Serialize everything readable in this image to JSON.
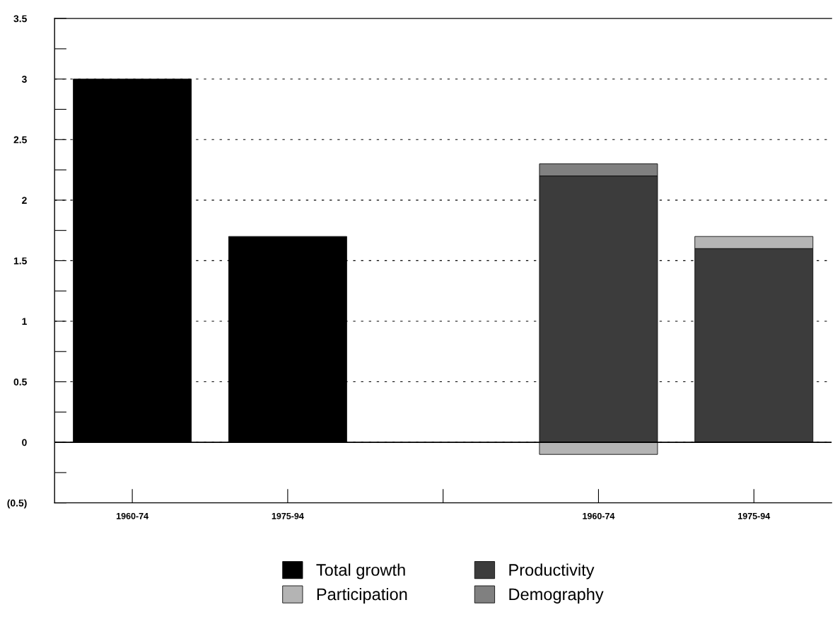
{
  "chart_data": {
    "type": "bar",
    "stacked": true,
    "categories": [
      "1960-74",
      "1975-94",
      null,
      "1960-74",
      "1975-94"
    ],
    "series": [
      {
        "name": "Total growth",
        "color": "#000000",
        "values": [
          3.0,
          1.7,
          null,
          null,
          null
        ]
      },
      {
        "name": "Productivity",
        "color": "#3c3c3c",
        "values": [
          null,
          null,
          null,
          2.2,
          1.6
        ]
      },
      {
        "name": "Participation",
        "color": "#b4b4b4",
        "values": [
          null,
          null,
          null,
          -0.1,
          0.1
        ]
      },
      {
        "name": "Demography",
        "color": "#808080",
        "values": [
          null,
          null,
          null,
          0.1,
          null
        ]
      }
    ],
    "ylim": [
      -0.5,
      3.5
    ],
    "yticks": [
      {
        "value": -0.5,
        "label": "(0.5)"
      },
      0,
      0.5,
      1,
      1.5,
      2,
      2.5,
      3,
      3.5
    ],
    "grid": "y",
    "legend": "bottom"
  }
}
